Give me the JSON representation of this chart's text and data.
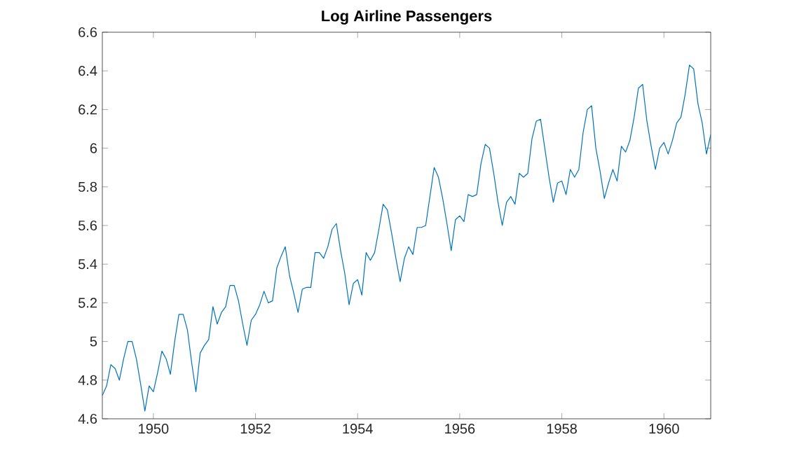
{
  "chart_data": {
    "type": "line",
    "title": "Log Airline Passengers",
    "x": [
      "1949-01",
      "1949-02",
      "1949-03",
      "1949-04",
      "1949-05",
      "1949-06",
      "1949-07",
      "1949-08",
      "1949-09",
      "1949-10",
      "1949-11",
      "1949-12",
      "1950-01",
      "1950-02",
      "1950-03",
      "1950-04",
      "1950-05",
      "1950-06",
      "1950-07",
      "1950-08",
      "1950-09",
      "1950-10",
      "1950-11",
      "1950-12",
      "1951-01",
      "1951-02",
      "1951-03",
      "1951-04",
      "1951-05",
      "1951-06",
      "1951-07",
      "1951-08",
      "1951-09",
      "1951-10",
      "1951-11",
      "1951-12",
      "1952-01",
      "1952-02",
      "1952-03",
      "1952-04",
      "1952-05",
      "1952-06",
      "1952-07",
      "1952-08",
      "1952-09",
      "1952-10",
      "1952-11",
      "1952-12",
      "1953-01",
      "1953-02",
      "1953-03",
      "1953-04",
      "1953-05",
      "1953-06",
      "1953-07",
      "1953-08",
      "1953-09",
      "1953-10",
      "1953-11",
      "1953-12",
      "1954-01",
      "1954-02",
      "1954-03",
      "1954-04",
      "1954-05",
      "1954-06",
      "1954-07",
      "1954-08",
      "1954-09",
      "1954-10",
      "1954-11",
      "1954-12",
      "1955-01",
      "1955-02",
      "1955-03",
      "1955-04",
      "1955-05",
      "1955-06",
      "1955-07",
      "1955-08",
      "1955-09",
      "1955-10",
      "1955-11",
      "1955-12",
      "1956-01",
      "1956-02",
      "1956-03",
      "1956-04",
      "1956-05",
      "1956-06",
      "1956-07",
      "1956-08",
      "1956-09",
      "1956-10",
      "1956-11",
      "1956-12",
      "1957-01",
      "1957-02",
      "1957-03",
      "1957-04",
      "1957-05",
      "1957-06",
      "1957-07",
      "1957-08",
      "1957-09",
      "1957-10",
      "1957-11",
      "1957-12",
      "1958-01",
      "1958-02",
      "1958-03",
      "1958-04",
      "1958-05",
      "1958-06",
      "1958-07",
      "1958-08",
      "1958-09",
      "1958-10",
      "1958-11",
      "1958-12",
      "1959-01",
      "1959-02",
      "1959-03",
      "1959-04",
      "1959-05",
      "1959-06",
      "1959-07",
      "1959-08",
      "1959-09",
      "1959-10",
      "1959-11",
      "1959-12",
      "1960-01",
      "1960-02",
      "1960-03",
      "1960-04",
      "1960-05",
      "1960-06",
      "1960-07",
      "1960-08",
      "1960-09",
      "1960-10",
      "1960-11",
      "1960-12"
    ],
    "series": [
      {
        "color": "#0072bd",
        "values": [
          4.72,
          4.77,
          4.88,
          4.86,
          4.8,
          4.91,
          5.0,
          5.0,
          4.91,
          4.78,
          4.64,
          4.77,
          4.74,
          4.84,
          4.95,
          4.91,
          4.83,
          5.0,
          5.14,
          5.14,
          5.06,
          4.89,
          4.74,
          4.94,
          4.98,
          5.01,
          5.18,
          5.09,
          5.15,
          5.18,
          5.29,
          5.29,
          5.21,
          5.09,
          4.98,
          5.11,
          5.14,
          5.19,
          5.26,
          5.2,
          5.21,
          5.38,
          5.44,
          5.49,
          5.34,
          5.25,
          5.15,
          5.27,
          5.28,
          5.28,
          5.46,
          5.46,
          5.43,
          5.49,
          5.58,
          5.61,
          5.47,
          5.35,
          5.19,
          5.3,
          5.32,
          5.24,
          5.46,
          5.42,
          5.46,
          5.58,
          5.71,
          5.68,
          5.56,
          5.43,
          5.31,
          5.43,
          5.49,
          5.45,
          5.59,
          5.59,
          5.6,
          5.75,
          5.9,
          5.85,
          5.74,
          5.61,
          5.47,
          5.63,
          5.65,
          5.62,
          5.76,
          5.75,
          5.76,
          5.92,
          6.02,
          6.0,
          5.87,
          5.72,
          5.6,
          5.72,
          5.75,
          5.71,
          5.87,
          5.85,
          5.87,
          6.05,
          6.14,
          6.15,
          6.0,
          5.85,
          5.72,
          5.82,
          5.83,
          5.76,
          5.89,
          5.85,
          5.89,
          6.08,
          6.2,
          6.22,
          6.0,
          5.88,
          5.74,
          5.82,
          5.89,
          5.83,
          6.01,
          5.98,
          6.04,
          6.16,
          6.31,
          6.33,
          6.14,
          6.01,
          5.89,
          6.0,
          6.03,
          5.97,
          6.04,
          6.13,
          6.16,
          6.28,
          6.43,
          6.41,
          6.23,
          6.13,
          5.97,
          6.07
        ]
      }
    ],
    "xlim": [
      "1949-01",
      "1960-12"
    ],
    "xticks": [
      "1950",
      "1952",
      "1954",
      "1956",
      "1958",
      "1960"
    ],
    "ylim": [
      4.6,
      6.6
    ],
    "yticks": [
      4.6,
      4.8,
      5,
      5.2,
      5.4,
      5.6,
      5.8,
      6,
      6.2,
      6.4,
      6.6
    ],
    "marker": "none",
    "line_style": "solid"
  }
}
